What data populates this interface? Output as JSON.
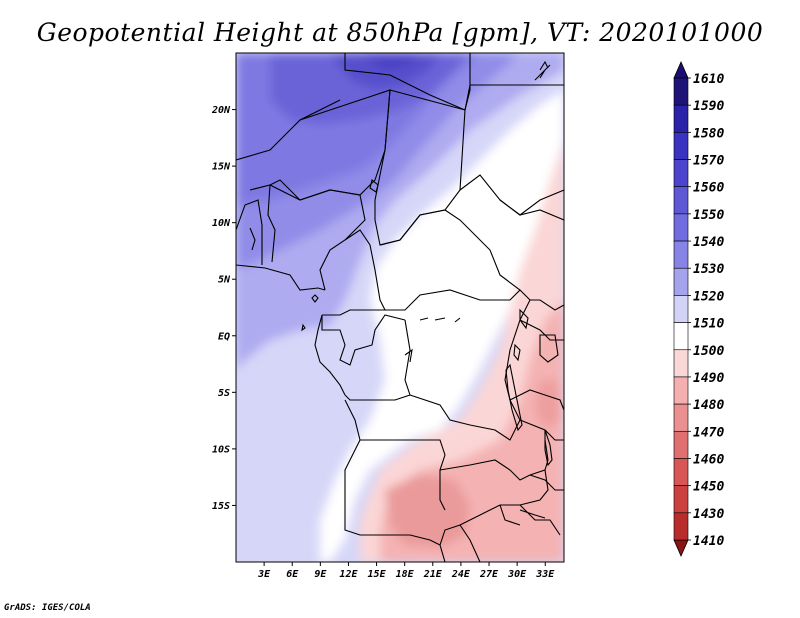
{
  "title": "Geopotential Height at 850hPa [gpm], VT: 2020101000",
  "footer": "GrADS: IGES/COLA",
  "map": {
    "lon_range": [
      0,
      35
    ],
    "lat_range": [
      -20,
      25
    ],
    "lat_ticks": [
      {
        "lat": 20,
        "label": "20N"
      },
      {
        "lat": 15,
        "label": "15N"
      },
      {
        "lat": 10,
        "label": "10N"
      },
      {
        "lat": 5,
        "label": "5N"
      },
      {
        "lat": 0,
        "label": "EQ"
      },
      {
        "lat": -5,
        "label": "5S"
      },
      {
        "lat": -10,
        "label": "10S"
      },
      {
        "lat": -15,
        "label": "15S"
      }
    ],
    "lon_ticks": [
      {
        "lon": 3,
        "label": "3E"
      },
      {
        "lon": 6,
        "label": "6E"
      },
      {
        "lon": 9,
        "label": "9E"
      },
      {
        "lon": 12,
        "label": "12E"
      },
      {
        "lon": 15,
        "label": "15E"
      },
      {
        "lon": 18,
        "label": "18E"
      },
      {
        "lon": 21,
        "label": "21E"
      },
      {
        "lon": 24,
        "label": "24E"
      },
      {
        "lon": 27,
        "label": "27E"
      },
      {
        "lon": 30,
        "label": "30E"
      },
      {
        "lon": 33,
        "label": "33E"
      }
    ]
  },
  "colorbar": {
    "levels": [
      {
        "value": "1610",
        "color": "#1e1478"
      },
      {
        "value": "1590",
        "color": "#2a22a8"
      },
      {
        "value": "1580",
        "color": "#3a32c0"
      },
      {
        "value": "1570",
        "color": "#4c44cc"
      },
      {
        "value": "1560",
        "color": "#5e58d6"
      },
      {
        "value": "1550",
        "color": "#716ce0"
      },
      {
        "value": "1540",
        "color": "#8884e6"
      },
      {
        "value": "1530",
        "color": "#a6a3ee"
      },
      {
        "value": "1520",
        "color": "#d3d3f8"
      },
      {
        "value": "1510",
        "color": "#ffffff"
      },
      {
        "value": "1500",
        "color": "#fbd8d8"
      },
      {
        "value": "1490",
        "color": "#f4b0b0"
      },
      {
        "value": "1480",
        "color": "#ea9090"
      },
      {
        "value": "1470",
        "color": "#e07070"
      },
      {
        "value": "1460",
        "color": "#d85656"
      },
      {
        "value": "1450",
        "color": "#cc4040"
      },
      {
        "value": "1430",
        "color": "#b82c2c"
      },
      {
        "value": "1410",
        "color": "#961a1a"
      }
    ],
    "top_color": "#1a0e70",
    "bottom_color": "#8a1414"
  }
}
